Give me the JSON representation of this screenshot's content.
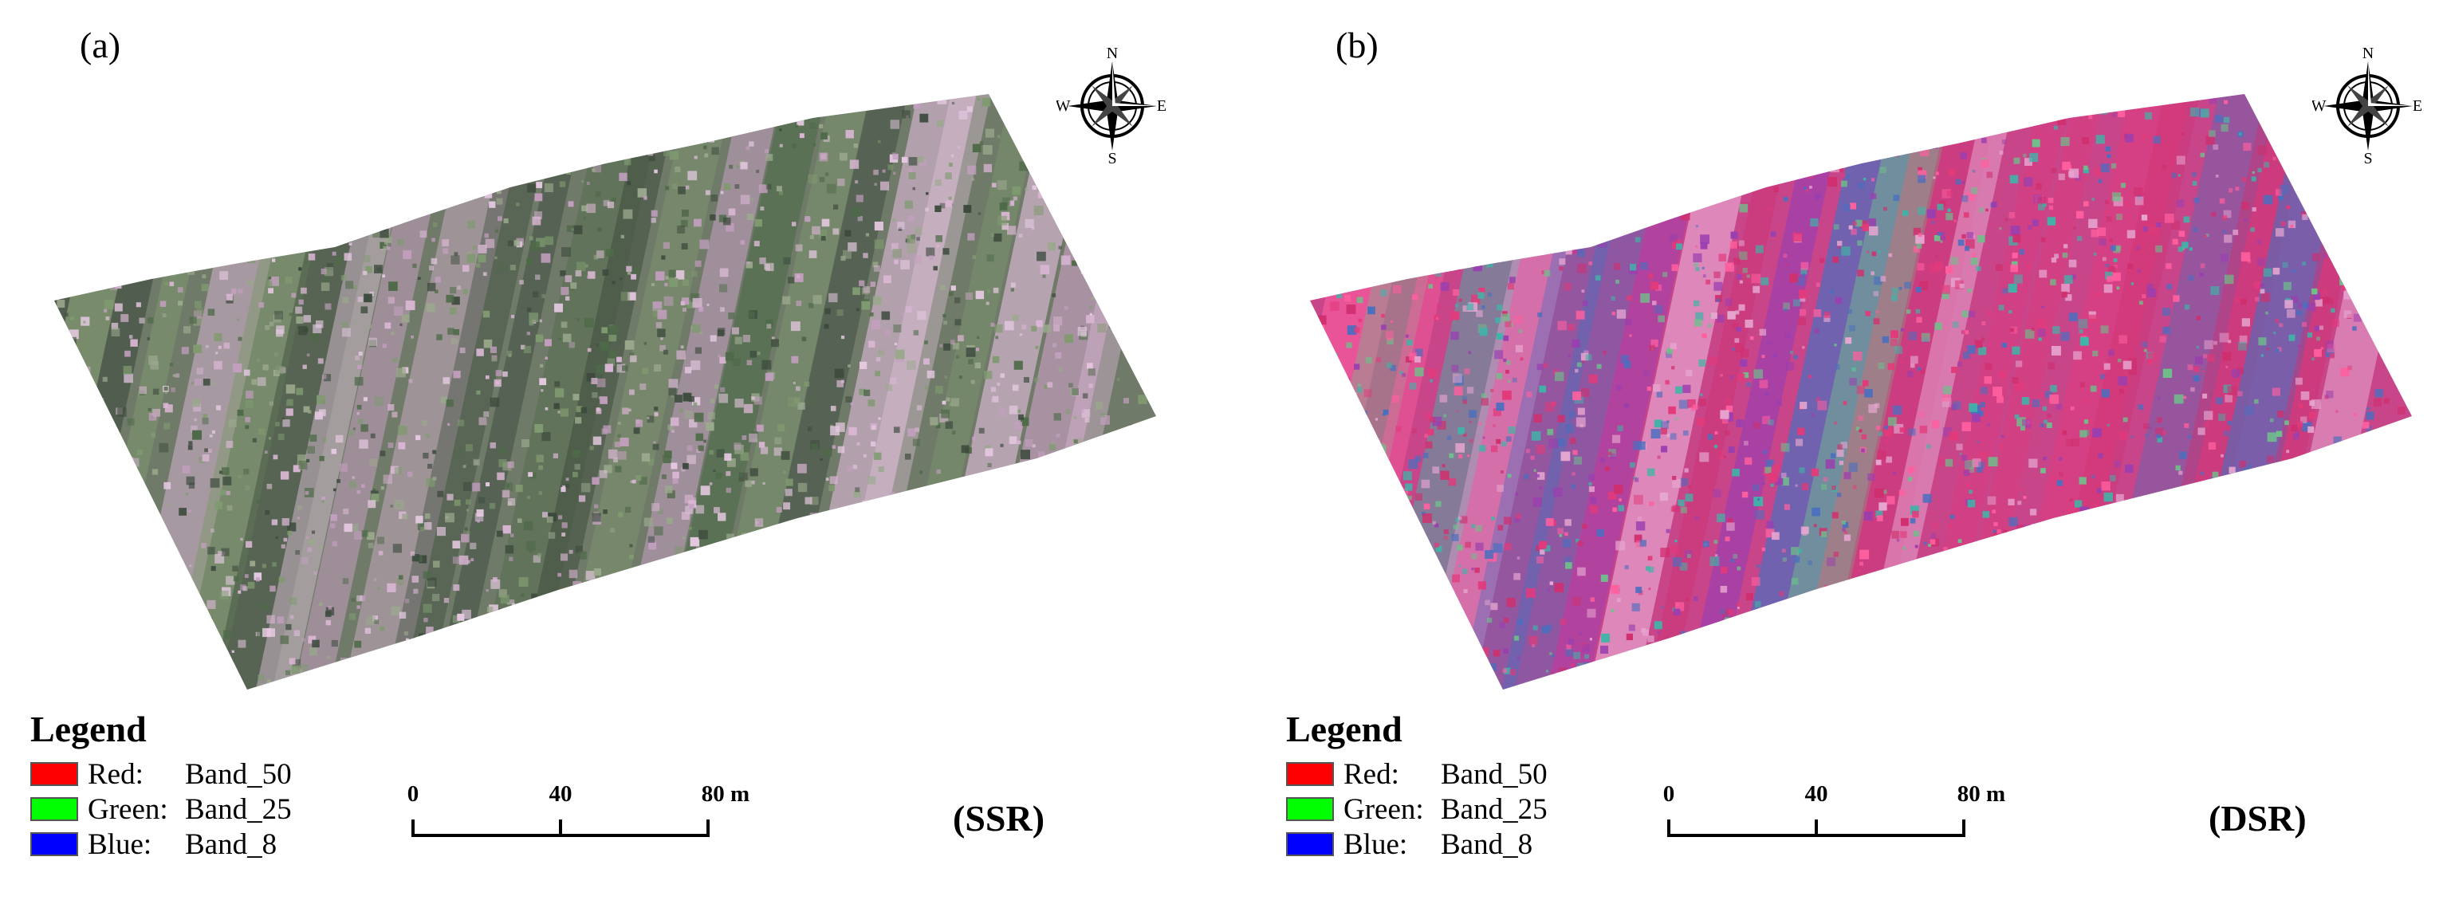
{
  "panels": [
    {
      "label": "(a)",
      "method": "(SSR)",
      "base_color": "#6f7a68",
      "patch_colors": [
        "#d9b6d3",
        "#e4c8e0",
        "#3c4a3d",
        "#4e6a48",
        "#7f9a70",
        "#9aa88c",
        "#c49fc0"
      ]
    },
    {
      "label": "(b)",
      "method": "(DSR)",
      "base_color": "#c8458a",
      "patch_colors": [
        "#e23a7a",
        "#d02f6e",
        "#3fb4a8",
        "#6fbf8a",
        "#4a6fbf",
        "#e6a6d0",
        "#9a3fb0",
        "#ff5f9f"
      ]
    }
  ],
  "compass": {
    "n": "N",
    "s": "S",
    "e": "E",
    "w": "W",
    "icon": "compass-rose-icon"
  },
  "legend": {
    "title": "Legend",
    "items": [
      {
        "channel": "Red:",
        "band": "Band_50",
        "color": "#ff0000"
      },
      {
        "channel": "Green:",
        "band": "Band_25",
        "color": "#00ff00"
      },
      {
        "channel": "Blue:",
        "band": "Band_8",
        "color": "#0000ff"
      }
    ]
  },
  "scale": {
    "ticks": [
      "0",
      "40",
      "80 m"
    ]
  }
}
